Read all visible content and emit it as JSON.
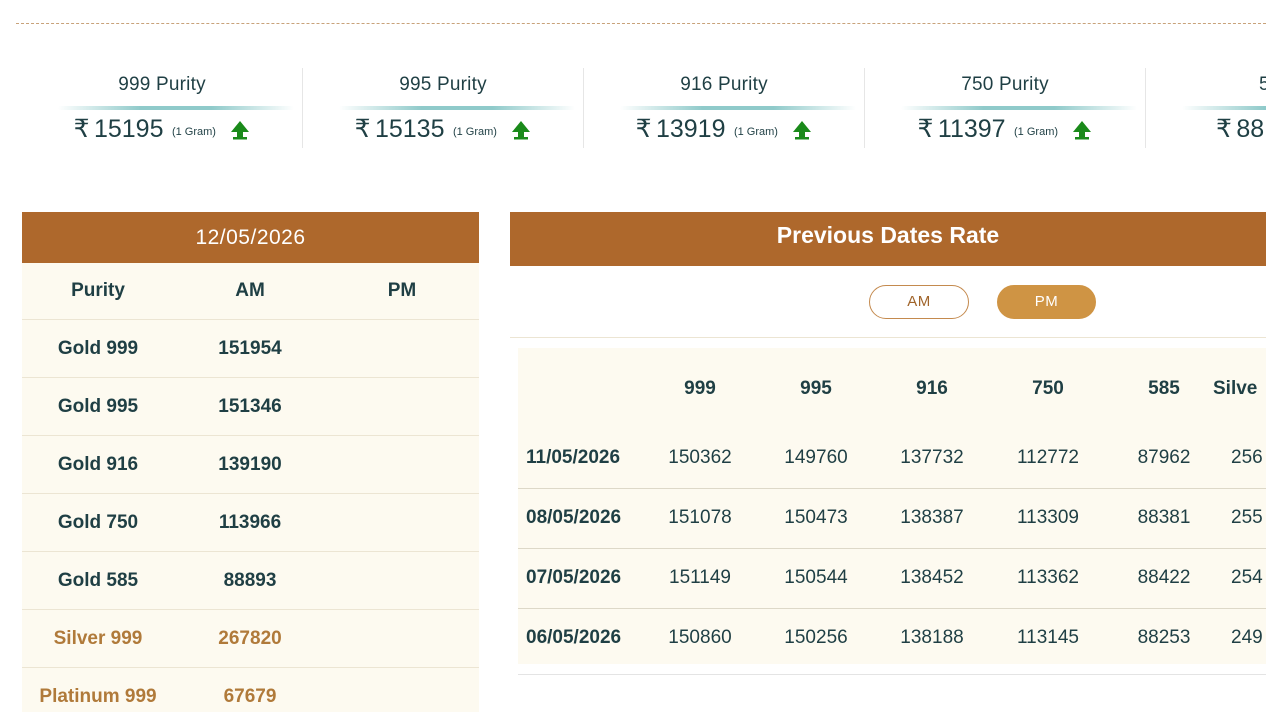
{
  "ticker": [
    {
      "title": "999 Purity",
      "currency": "₹",
      "price": "15195",
      "unit": "(1 Gram)",
      "trend_icon": "up-arrow-icon"
    },
    {
      "title": "995 Purity",
      "currency": "₹",
      "price": "15135",
      "unit": "(1 Gram)",
      "trend_icon": "up-arrow-icon"
    },
    {
      "title": "916 Purity",
      "currency": "₹",
      "price": "13919",
      "unit": "(1 Gram)",
      "trend_icon": "up-arrow-icon"
    },
    {
      "title": "750 Purity",
      "currency": "₹",
      "price": "11397",
      "unit": "(1 Gram)",
      "trend_icon": "up-arrow-icon"
    },
    {
      "title": "5",
      "currency": "₹",
      "price": "88",
      "unit": "",
      "trend_icon": ""
    }
  ],
  "colors": {
    "brown": "#ae682c",
    "gold": "#cf9444",
    "cream": "#fdfaf0",
    "teal_text": "#1f3f44",
    "accent_text": "#b07a3a",
    "up_green": "#1a8a1a"
  },
  "today": {
    "date": "12/05/2026",
    "headers": [
      "Purity",
      "AM",
      "PM"
    ],
    "rows": [
      {
        "purity": "Gold 999",
        "am": "151954",
        "pm": ""
      },
      {
        "purity": "Gold 995",
        "am": "151346",
        "pm": ""
      },
      {
        "purity": "Gold 916",
        "am": "139190",
        "pm": ""
      },
      {
        "purity": "Gold 750",
        "am": "113966",
        "pm": ""
      },
      {
        "purity": "Gold 585",
        "am": "88893",
        "pm": ""
      },
      {
        "purity": "Silver 999",
        "am": "267820",
        "pm": ""
      },
      {
        "purity": "Platinum 999",
        "am": "67679",
        "pm": ""
      }
    ]
  },
  "previous": {
    "title": "Previous Dates Rate",
    "toggle_am": "AM",
    "toggle_pm": "PM",
    "active_toggle": "PM",
    "headers": [
      "999",
      "995",
      "916",
      "750",
      "585",
      "Silve"
    ],
    "rows": [
      {
        "date": "11/05/2026",
        "values": [
          "150362",
          "149760",
          "137732",
          "112772",
          "87962",
          "256"
        ]
      },
      {
        "date": "08/05/2026",
        "values": [
          "151078",
          "150473",
          "138387",
          "113309",
          "88381",
          "255"
        ]
      },
      {
        "date": "07/05/2026",
        "values": [
          "151149",
          "150544",
          "138452",
          "113362",
          "88422",
          "254"
        ]
      },
      {
        "date": "06/05/2026",
        "values": [
          "150860",
          "150256",
          "138188",
          "113145",
          "88253",
          "249"
        ]
      }
    ]
  }
}
